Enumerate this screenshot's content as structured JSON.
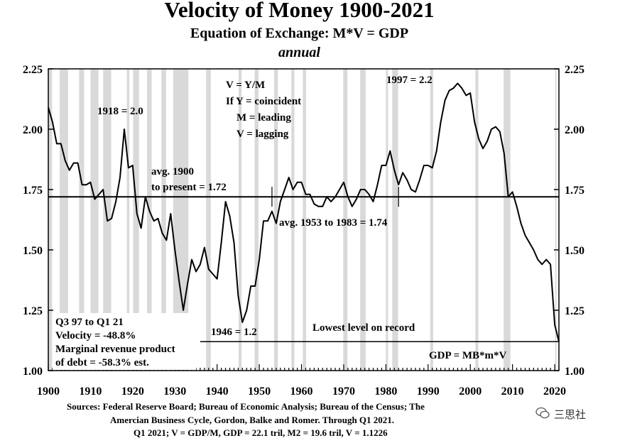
{
  "title": "Velocity of Money 1900-2021",
  "subtitle": "Equation of Exchange: M*V = GDP",
  "subsubtitle": "annual",
  "sources": [
    "Sources: Federal Reserve Board; Bureau of Economic Analysis; Bureau of the Census; The",
    "Amercian Business Cycle, Gordon, Balke and Romer.   Through Q1 2021.",
    "Q1 2021; V = GDP/M, GDP = 22.1 tril, M2 = 19.6 tril, V = 1.1226"
  ],
  "watermark": "三思社",
  "annotations": {
    "eq1": "V = Y/M",
    "eq2": "If Y = coincident",
    "eq3": "M = leading",
    "eq4": "V = lagging",
    "peak1918": "1918 = 2.0",
    "peak1997": "1997 = 2.2",
    "avg_line1": "avg. 1900",
    "avg_line2": "to present = 1.72",
    "avg5383": "avg. 1953 to 1983 = 1.74",
    "low1946": "1946 = 1.2",
    "lowest": "Lowest level on record",
    "gdp_eq": "GDP = MB*m*V",
    "box1": "Q3 97 to Q1 21",
    "box2": "Velocity =  -48.8%",
    "box3": "Marginal revenue product",
    "box4": "of debt = -58.3% est."
  },
  "chart_data": {
    "type": "line",
    "title": "Velocity of Money 1900-2021",
    "xlim": [
      1900,
      2021
    ],
    "ylim": [
      1.0,
      2.25
    ],
    "xticks": [
      1900,
      1910,
      1920,
      1930,
      1940,
      1950,
      1960,
      1970,
      1980,
      1990,
      2000,
      2010,
      2020
    ],
    "yticks": [
      "1.00",
      "1.25",
      "1.50",
      "1.75",
      "2.00",
      "2.25"
    ],
    "grid": false,
    "colors": {
      "line": "#000000",
      "recession": "#d9d9d9"
    },
    "series": [
      {
        "x": [
          1900,
          1901,
          1902,
          1903,
          1904,
          1905,
          1906,
          1907,
          1908,
          1909,
          1910,
          1911,
          1912,
          1913,
          1914,
          1915,
          1916,
          1917,
          1918,
          1919,
          1920,
          1921,
          1922,
          1923,
          1924,
          1925,
          1926,
          1927,
          1928,
          1929,
          1930,
          1931,
          1932,
          1933,
          1934,
          1935,
          1936,
          1937,
          1938,
          1939,
          1940,
          1941,
          1942,
          1943,
          1944,
          1945,
          1946,
          1947,
          1948,
          1949,
          1950,
          1951,
          1952,
          1953,
          1954,
          1955,
          1956,
          1957,
          1958,
          1959,
          1960,
          1961,
          1962,
          1963,
          1964,
          1965,
          1966,
          1967,
          1968,
          1969,
          1970,
          1971,
          1972,
          1973,
          1974,
          1975,
          1976,
          1977,
          1978,
          1979,
          1980,
          1981,
          1982,
          1983,
          1984,
          1985,
          1986,
          1987,
          1988,
          1989,
          1990,
          1991,
          1992,
          1993,
          1994,
          1995,
          1996,
          1997,
          1998,
          1999,
          2000,
          2001,
          2002,
          2003,
          2004,
          2005,
          2006,
          2007,
          2008,
          2009,
          2010,
          2011,
          2012,
          2013,
          2014,
          2015,
          2016,
          2017,
          2018,
          2019,
          2020,
          2021
        ],
        "values": [
          2.09,
          2.03,
          1.94,
          1.94,
          1.87,
          1.83,
          1.86,
          1.86,
          1.77,
          1.77,
          1.78,
          1.71,
          1.73,
          1.75,
          1.62,
          1.63,
          1.7,
          1.8,
          2.0,
          1.84,
          1.85,
          1.65,
          1.59,
          1.72,
          1.66,
          1.62,
          1.63,
          1.57,
          1.54,
          1.65,
          1.5,
          1.37,
          1.25,
          1.36,
          1.46,
          1.41,
          1.44,
          1.51,
          1.42,
          1.4,
          1.38,
          1.53,
          1.7,
          1.64,
          1.53,
          1.31,
          1.2,
          1.25,
          1.35,
          1.35,
          1.46,
          1.62,
          1.62,
          1.66,
          1.61,
          1.7,
          1.75,
          1.8,
          1.75,
          1.78,
          1.78,
          1.73,
          1.73,
          1.69,
          1.68,
          1.68,
          1.72,
          1.7,
          1.72,
          1.75,
          1.78,
          1.72,
          1.68,
          1.71,
          1.75,
          1.75,
          1.73,
          1.7,
          1.77,
          1.85,
          1.85,
          1.91,
          1.83,
          1.77,
          1.82,
          1.79,
          1.75,
          1.74,
          1.79,
          1.85,
          1.85,
          1.84,
          1.91,
          2.03,
          2.12,
          2.16,
          2.17,
          2.19,
          2.17,
          2.14,
          2.15,
          2.03,
          1.96,
          1.92,
          1.95,
          2.0,
          2.01,
          1.99,
          1.9,
          1.72,
          1.74,
          1.68,
          1.61,
          1.56,
          1.53,
          1.5,
          1.46,
          1.44,
          1.46,
          1.44,
          1.19,
          1.12
        ]
      }
    ],
    "reference_lines": [
      {
        "type": "horizontal",
        "y": 1.72,
        "x_from": 1900,
        "x_to": 2021
      },
      {
        "type": "horizontal",
        "y": 1.12,
        "x_from": 1936,
        "x_to": 2021
      }
    ],
    "marker_ticks": [
      1953,
      1983
    ],
    "recession_bands": [
      [
        1899.5,
        1900.9
      ],
      [
        1902.7,
        1904.7
      ],
      [
        1907.3,
        1908.5
      ],
      [
        1910,
        1911.9
      ],
      [
        1913,
        1914.9
      ],
      [
        1918.6,
        1919.2
      ],
      [
        1920.1,
        1921.5
      ],
      [
        1923.4,
        1924.5
      ],
      [
        1926.8,
        1927.9
      ],
      [
        1929.6,
        1933.2
      ],
      [
        1937.4,
        1938.5
      ],
      [
        1945.1,
        1945.8
      ],
      [
        1948.9,
        1949.8
      ],
      [
        1953.5,
        1954.4
      ],
      [
        1957.6,
        1958.3
      ],
      [
        1960.3,
        1961.1
      ],
      [
        1969.9,
        1970.9
      ],
      [
        1973.9,
        1975.2
      ],
      [
        1980,
        1980.5
      ],
      [
        1981.5,
        1982.9
      ],
      [
        1990.5,
        1991.2
      ],
      [
        2001.2,
        2001.9
      ],
      [
        2007.9,
        2009.5
      ],
      [
        2020.1,
        2020.4
      ]
    ]
  }
}
